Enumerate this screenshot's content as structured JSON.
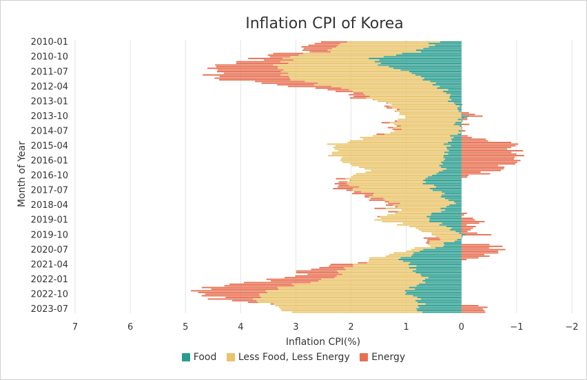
{
  "chart_data": {
    "type": "bar",
    "orientation": "horizontal",
    "stacked": true,
    "title": "Inflation CPI of Korea",
    "xlabel": "Inflation CPI(%)",
    "ylabel": "Month of Year",
    "xlim": [
      7,
      -2
    ],
    "x_ticks": [
      "7",
      "6",
      "5",
      "4",
      "3",
      "2",
      "1",
      "0",
      "−1",
      "−2"
    ],
    "y_tick_labels": [
      "2010-01",
      "2010-10",
      "2011-07",
      "2012-04",
      "2013-01",
      "2013-10",
      "2014-07",
      "2015-04",
      "2016-01",
      "2016-10",
      "2017-07",
      "2018-04",
      "2019-01",
      "2019-10",
      "2020-07",
      "2021-04",
      "2022-01",
      "2022-10",
      "2023-07"
    ],
    "category_start": "2010-01",
    "category_end": "2023-09",
    "grid": "vertical",
    "legend_position": "bottom",
    "colors": {
      "Food": "#2a9d8f",
      "Less Food, Less Energy": "#e9c46a",
      "Energy": "#e76f51"
    },
    "anchors": {
      "Food": [
        [
          "2010-01",
          0.45
        ],
        [
          "2010-07",
          0.8
        ],
        [
          "2010-11",
          1.6
        ],
        [
          "2011-03",
          1.5
        ],
        [
          "2011-07",
          0.9
        ],
        [
          "2012-01",
          0.6
        ],
        [
          "2012-06",
          0.3
        ],
        [
          "2013-01",
          0.2
        ],
        [
          "2013-06",
          0.05
        ],
        [
          "2013-09",
          -0.1
        ],
        [
          "2014-01",
          0.05
        ],
        [
          "2014-07",
          0.05
        ],
        [
          "2015-01",
          0.2
        ],
        [
          "2015-06",
          0.3
        ],
        [
          "2015-12",
          0.35
        ],
        [
          "2016-06",
          0.3
        ],
        [
          "2016-09",
          0.4
        ],
        [
          "2017-01",
          0.7
        ],
        [
          "2017-06",
          0.5
        ],
        [
          "2017-11",
          0.3
        ],
        [
          "2018-04",
          0.15
        ],
        [
          "2018-09",
          0.5
        ],
        [
          "2019-01",
          0.6
        ],
        [
          "2019-06",
          0.2
        ],
        [
          "2019-10",
          -0.1
        ],
        [
          "2020-01",
          0.1
        ],
        [
          "2020-05",
          0.4
        ],
        [
          "2020-09",
          0.9
        ],
        [
          "2021-01",
          1.1
        ],
        [
          "2021-05",
          0.9
        ],
        [
          "2021-11",
          0.7
        ],
        [
          "2022-03",
          0.6
        ],
        [
          "2022-06",
          0.9
        ],
        [
          "2022-09",
          1.0
        ],
        [
          "2023-01",
          0.8
        ],
        [
          "2023-06",
          0.7
        ],
        [
          "2023-09",
          0.8
        ]
      ],
      "Less Food, Less Energy": [
        [
          "2010-01",
          1.7
        ],
        [
          "2010-07",
          1.7
        ],
        [
          "2011-01",
          1.6
        ],
        [
          "2011-07",
          2.3
        ],
        [
          "2011-12",
          2.5
        ],
        [
          "2012-06",
          1.7
        ],
        [
          "2013-01",
          1.3
        ],
        [
          "2013-10",
          1.0
        ],
        [
          "2014-07",
          1.2
        ],
        [
          "2015-03",
          2.0
        ],
        [
          "2015-10",
          2.0
        ],
        [
          "2016-06",
          1.4
        ],
        [
          "2016-12",
          1.4
        ],
        [
          "2017-06",
          1.5
        ],
        [
          "2018-04",
          1.0
        ],
        [
          "2018-10",
          0.7
        ],
        [
          "2019-01",
          0.9
        ],
        [
          "2019-10",
          0.5
        ],
        [
          "2020-04",
          0.3
        ],
        [
          "2020-09",
          0.3
        ],
        [
          "2021-01",
          0.5
        ],
        [
          "2021-05",
          1.1
        ],
        [
          "2021-11",
          1.5
        ],
        [
          "2022-04",
          2.2
        ],
        [
          "2022-09",
          2.6
        ],
        [
          "2023-01",
          3.0
        ],
        [
          "2023-06",
          2.5
        ],
        [
          "2023-09",
          2.3
        ]
      ],
      "Energy": [
        [
          "2010-01",
          0.6
        ],
        [
          "2010-06",
          0.4
        ],
        [
          "2010-12",
          0.6
        ],
        [
          "2011-04",
          1.1
        ],
        [
          "2011-07",
          1.3
        ],
        [
          "2011-12",
          1.2
        ],
        [
          "2012-03",
          0.8
        ],
        [
          "2012-08",
          0.3
        ],
        [
          "2012-12",
          0.15
        ],
        [
          "2013-05",
          0.1
        ],
        [
          "2013-10",
          -0.1
        ],
        [
          "2014-06",
          0.05
        ],
        [
          "2014-10",
          0.0
        ],
        [
          "2014-12",
          -0.3
        ],
        [
          "2015-03",
          -1.0
        ],
        [
          "2015-06",
          -1.0
        ],
        [
          "2015-12",
          -0.95
        ],
        [
          "2016-03",
          -0.9
        ],
        [
          "2016-07",
          -0.6
        ],
        [
          "2016-10",
          -0.25
        ],
        [
          "2016-12",
          0.15
        ],
        [
          "2017-04",
          0.3
        ],
        [
          "2017-08",
          0.25
        ],
        [
          "2018-01",
          0.15
        ],
        [
          "2018-06",
          0.1
        ],
        [
          "2018-11",
          0.05
        ],
        [
          "2019-02",
          -0.3
        ],
        [
          "2019-06",
          -0.2
        ],
        [
          "2019-10",
          -0.3
        ],
        [
          "2019-12",
          0.25
        ],
        [
          "2020-03",
          -0.1
        ],
        [
          "2020-05",
          -0.7
        ],
        [
          "2020-09",
          -0.6
        ],
        [
          "2020-12",
          -0.4
        ],
        [
          "2021-02",
          0.1
        ],
        [
          "2021-06",
          0.55
        ],
        [
          "2021-11",
          0.75
        ],
        [
          "2022-03",
          1.1
        ],
        [
          "2022-06",
          1.5
        ],
        [
          "2022-09",
          1.1
        ],
        [
          "2023-01",
          0.7
        ],
        [
          "2023-04",
          0.0
        ],
        [
          "2023-06",
          -0.3
        ],
        [
          "2023-09",
          -0.5
        ]
      ]
    }
  },
  "legend": [
    {
      "label": "Food",
      "color": "#2a9d8f"
    },
    {
      "label": "Less Food, Less Energy",
      "color": "#e9c46a"
    },
    {
      "label": "Energy",
      "color": "#e76f51"
    }
  ]
}
